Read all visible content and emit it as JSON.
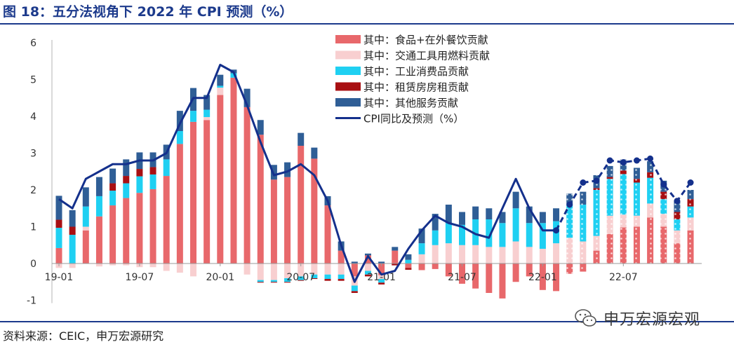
{
  "header": {
    "title": "图 18：五分法视角下 2022 年 CPI 预测（%）"
  },
  "footer": {
    "source": "资料来源：CEIC，申万宏源研究",
    "watermark": "申万宏源宏观"
  },
  "colors": {
    "food": "#e8686b",
    "transport": "#f8cfd0",
    "industrial": "#1fd0f2",
    "rent": "#a80f12",
    "services": "#2f5e96",
    "cpi": "#14308c",
    "frame": "#1c3a8c"
  },
  "chart_data": {
    "type": "bar",
    "stacked": true,
    "months": [
      "19-01",
      "19-02",
      "19-03",
      "19-04",
      "19-05",
      "19-06",
      "19-07",
      "19-08",
      "19-09",
      "19-10",
      "19-11",
      "19-12",
      "20-01",
      "20-02",
      "20-03",
      "20-04",
      "20-05",
      "20-06",
      "20-07",
      "20-08",
      "20-09",
      "20-10",
      "20-11",
      "20-12",
      "21-01",
      "21-02",
      "21-03",
      "21-04",
      "21-05",
      "21-06",
      "21-07",
      "21-08",
      "21-09",
      "21-10",
      "21-11",
      "21-12",
      "22-01",
      "22-02",
      "22-03",
      "22-04",
      "22-05",
      "22-06",
      "22-07",
      "22-08",
      "22-09",
      "22-10",
      "22-11",
      "22-12"
    ],
    "x_tick_labels": [
      "19-01",
      "19-07",
      "20-01",
      "20-07",
      "21-01",
      "21-07",
      "22-01",
      "22-07"
    ],
    "x_tick_index": [
      0,
      6,
      12,
      18,
      24,
      30,
      36,
      42
    ],
    "y_ticks": [
      "-1",
      "0",
      "1",
      "2",
      "3",
      "4",
      "5",
      "6"
    ],
    "ylim": [
      -1,
      6
    ],
    "forecast_from_index": 38,
    "legend_position": "top-center",
    "series": [
      {
        "name": "其中：食品+在外餐饮贡献",
        "color_key": "food",
        "values": [
          0.42,
          0.0,
          0.9,
          1.28,
          1.58,
          1.78,
          1.92,
          2.02,
          2.38,
          3.25,
          3.85,
          3.9,
          4.58,
          5.05,
          4.25,
          3.5,
          2.28,
          2.35,
          3.2,
          2.85,
          1.58,
          0.35,
          -0.35,
          0.22,
          -0.32,
          0.35,
          -0.12,
          -0.18,
          -0.15,
          -0.35,
          -0.55,
          -0.68,
          -0.8,
          -0.95,
          -0.5,
          -0.35,
          -0.72,
          -0.75,
          -0.28,
          -0.22,
          0.35,
          0.8,
          0.98,
          1.0,
          1.25,
          1.0,
          0.55,
          0.9
        ]
      },
      {
        "name": "其中：交通工具用燃料贡献",
        "color_key": "transport",
        "values": [
          -0.12,
          -0.12,
          0.1,
          -0.08,
          -0.05,
          -0.05,
          -0.1,
          -0.1,
          -0.2,
          -0.25,
          -0.35,
          0.08,
          0.2,
          0.0,
          -0.3,
          -0.45,
          -0.45,
          -0.4,
          -0.35,
          -0.3,
          -0.3,
          -0.3,
          -0.25,
          -0.2,
          -0.1,
          0.0,
          0.0,
          0.25,
          0.5,
          0.55,
          0.5,
          0.5,
          0.45,
          0.45,
          0.6,
          0.45,
          0.4,
          0.55,
          0.7,
          0.6,
          0.4,
          0.5,
          0.35,
          0.3,
          0.38,
          0.35,
          0.35,
          0.35
        ]
      },
      {
        "name": "其中：工业消费品贡献",
        "color_key": "industrial",
        "values": [
          0.55,
          0.78,
          0.55,
          0.55,
          0.4,
          0.4,
          0.45,
          0.4,
          0.45,
          0.35,
          0.3,
          0.2,
          0.05,
          0.12,
          0.0,
          -0.05,
          -0.05,
          -0.1,
          -0.1,
          -0.1,
          -0.12,
          -0.12,
          -0.15,
          -0.1,
          -0.1,
          0.0,
          0.1,
          0.3,
          0.4,
          0.55,
          0.55,
          0.7,
          0.75,
          0.65,
          0.9,
          0.65,
          0.7,
          0.6,
          0.9,
          1.0,
          1.25,
          1.0,
          1.1,
          0.9,
          0.7,
          0.4,
          0.3,
          0.3
        ]
      },
      {
        "name": "其中：租赁房房租贡献",
        "color_key": "rent",
        "values": [
          0.22,
          0.22,
          0.0,
          0.0,
          0.2,
          0.2,
          0.2,
          0.2,
          0.0,
          0.0,
          0.0,
          0.0,
          0.0,
          0.0,
          0.0,
          -0.02,
          -0.02,
          -0.02,
          -0.02,
          -0.02,
          -0.05,
          -0.05,
          -0.05,
          -0.05,
          -0.05,
          -0.05,
          -0.05,
          0.0,
          0.0,
          0.0,
          0.0,
          0.0,
          0.0,
          0.0,
          0.0,
          0.0,
          0.0,
          0.0,
          0.0,
          0.0,
          0.05,
          0.05,
          0.1,
          0.1,
          0.15,
          0.2,
          0.2,
          0.2
        ]
      },
      {
        "name": "其中：其他服务贡献",
        "color_key": "services",
        "values": [
          0.65,
          0.45,
          0.52,
          0.52,
          0.4,
          0.45,
          0.45,
          0.4,
          0.4,
          0.55,
          0.62,
          0.4,
          0.3,
          0.1,
          0.5,
          0.4,
          0.4,
          0.4,
          0.35,
          0.3,
          0.25,
          0.25,
          0.05,
          0.05,
          0.05,
          0.1,
          0.15,
          0.4,
          0.45,
          0.5,
          0.35,
          0.35,
          0.3,
          0.3,
          0.45,
          0.45,
          0.3,
          0.35,
          0.3,
          0.35,
          0.35,
          0.3,
          0.3,
          0.3,
          0.3,
          0.3,
          0.3,
          0.25
        ]
      }
    ],
    "line": {
      "name": "CPI同比及预测（%）",
      "color_key": "cpi",
      "values": [
        1.75,
        1.5,
        2.3,
        2.5,
        2.7,
        2.7,
        2.8,
        2.8,
        3.0,
        3.8,
        4.5,
        4.5,
        5.4,
        5.2,
        4.3,
        3.3,
        2.4,
        2.5,
        2.7,
        2.4,
        1.7,
        0.5,
        -0.5,
        0.2,
        -0.3,
        -0.2,
        0.4,
        0.9,
        1.3,
        1.1,
        1.0,
        0.8,
        0.7,
        1.5,
        2.3,
        1.5,
        0.9,
        0.9,
        1.6,
        2.2,
        2.25,
        2.8,
        2.75,
        2.8,
        2.85,
        2.15,
        1.7,
        2.2
      ]
    }
  }
}
